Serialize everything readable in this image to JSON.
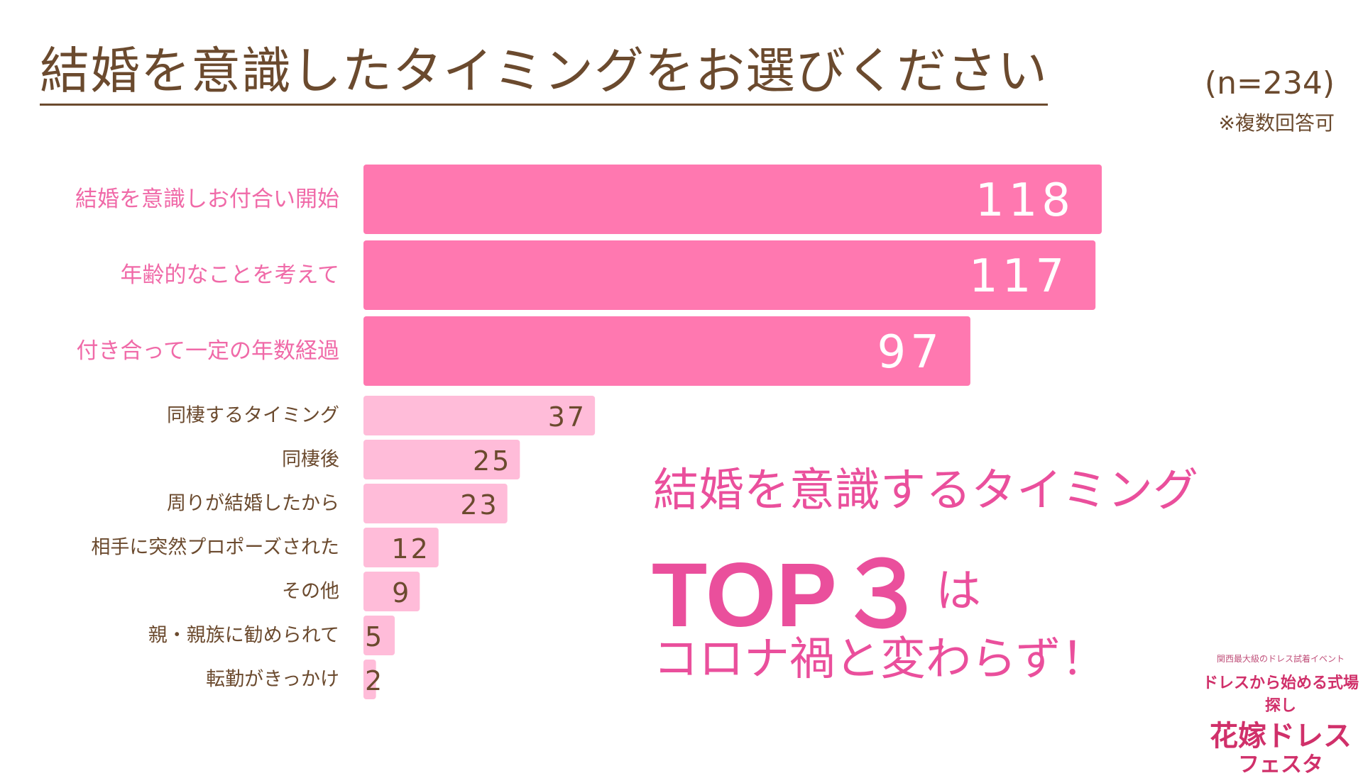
{
  "header": {
    "title": "結婚を意識したタイミングをお選びください",
    "sample_size": "(n=234)",
    "note": "※複数回答可"
  },
  "chart_data": {
    "type": "bar",
    "orientation": "horizontal",
    "title": "結婚を意識したタイミングをお選びください",
    "xlabel": "",
    "ylabel": "",
    "categories": [
      "結婚を意識しお付合い開始",
      "年齢的なことを考えて",
      "付き合って一定の年数経過",
      "同棲するタイミング",
      "同棲後",
      "周りが結婚したから",
      "相手に突然プロポーズされた",
      "その他",
      "親・親族に勧められて",
      "転勤がきっかけ"
    ],
    "values": [
      118,
      117,
      97,
      37,
      25,
      23,
      12,
      9,
      5,
      2
    ],
    "xlim": [
      0,
      118
    ],
    "top_n_highlighted": 3,
    "colors": {
      "top_bar": "#ff78b0",
      "other_bar": "#ffbcd9",
      "top_label": "#f06aa8",
      "other_label": "#6b4a2e",
      "top_value": "#ffffff",
      "other_value": "#6b4a2e"
    }
  },
  "callout": {
    "line1": "結婚を意識するタイミング",
    "line2": "TOP３",
    "line2_suffix": "は",
    "line3": "コロナ禍と変わらず！"
  },
  "logo": {
    "tagline": "関西最大級のドレス試着イベント",
    "subtitle": "ドレスから始める式場探し",
    "name_line1": "花嫁ドレス",
    "name_line2": "フェスタ"
  }
}
